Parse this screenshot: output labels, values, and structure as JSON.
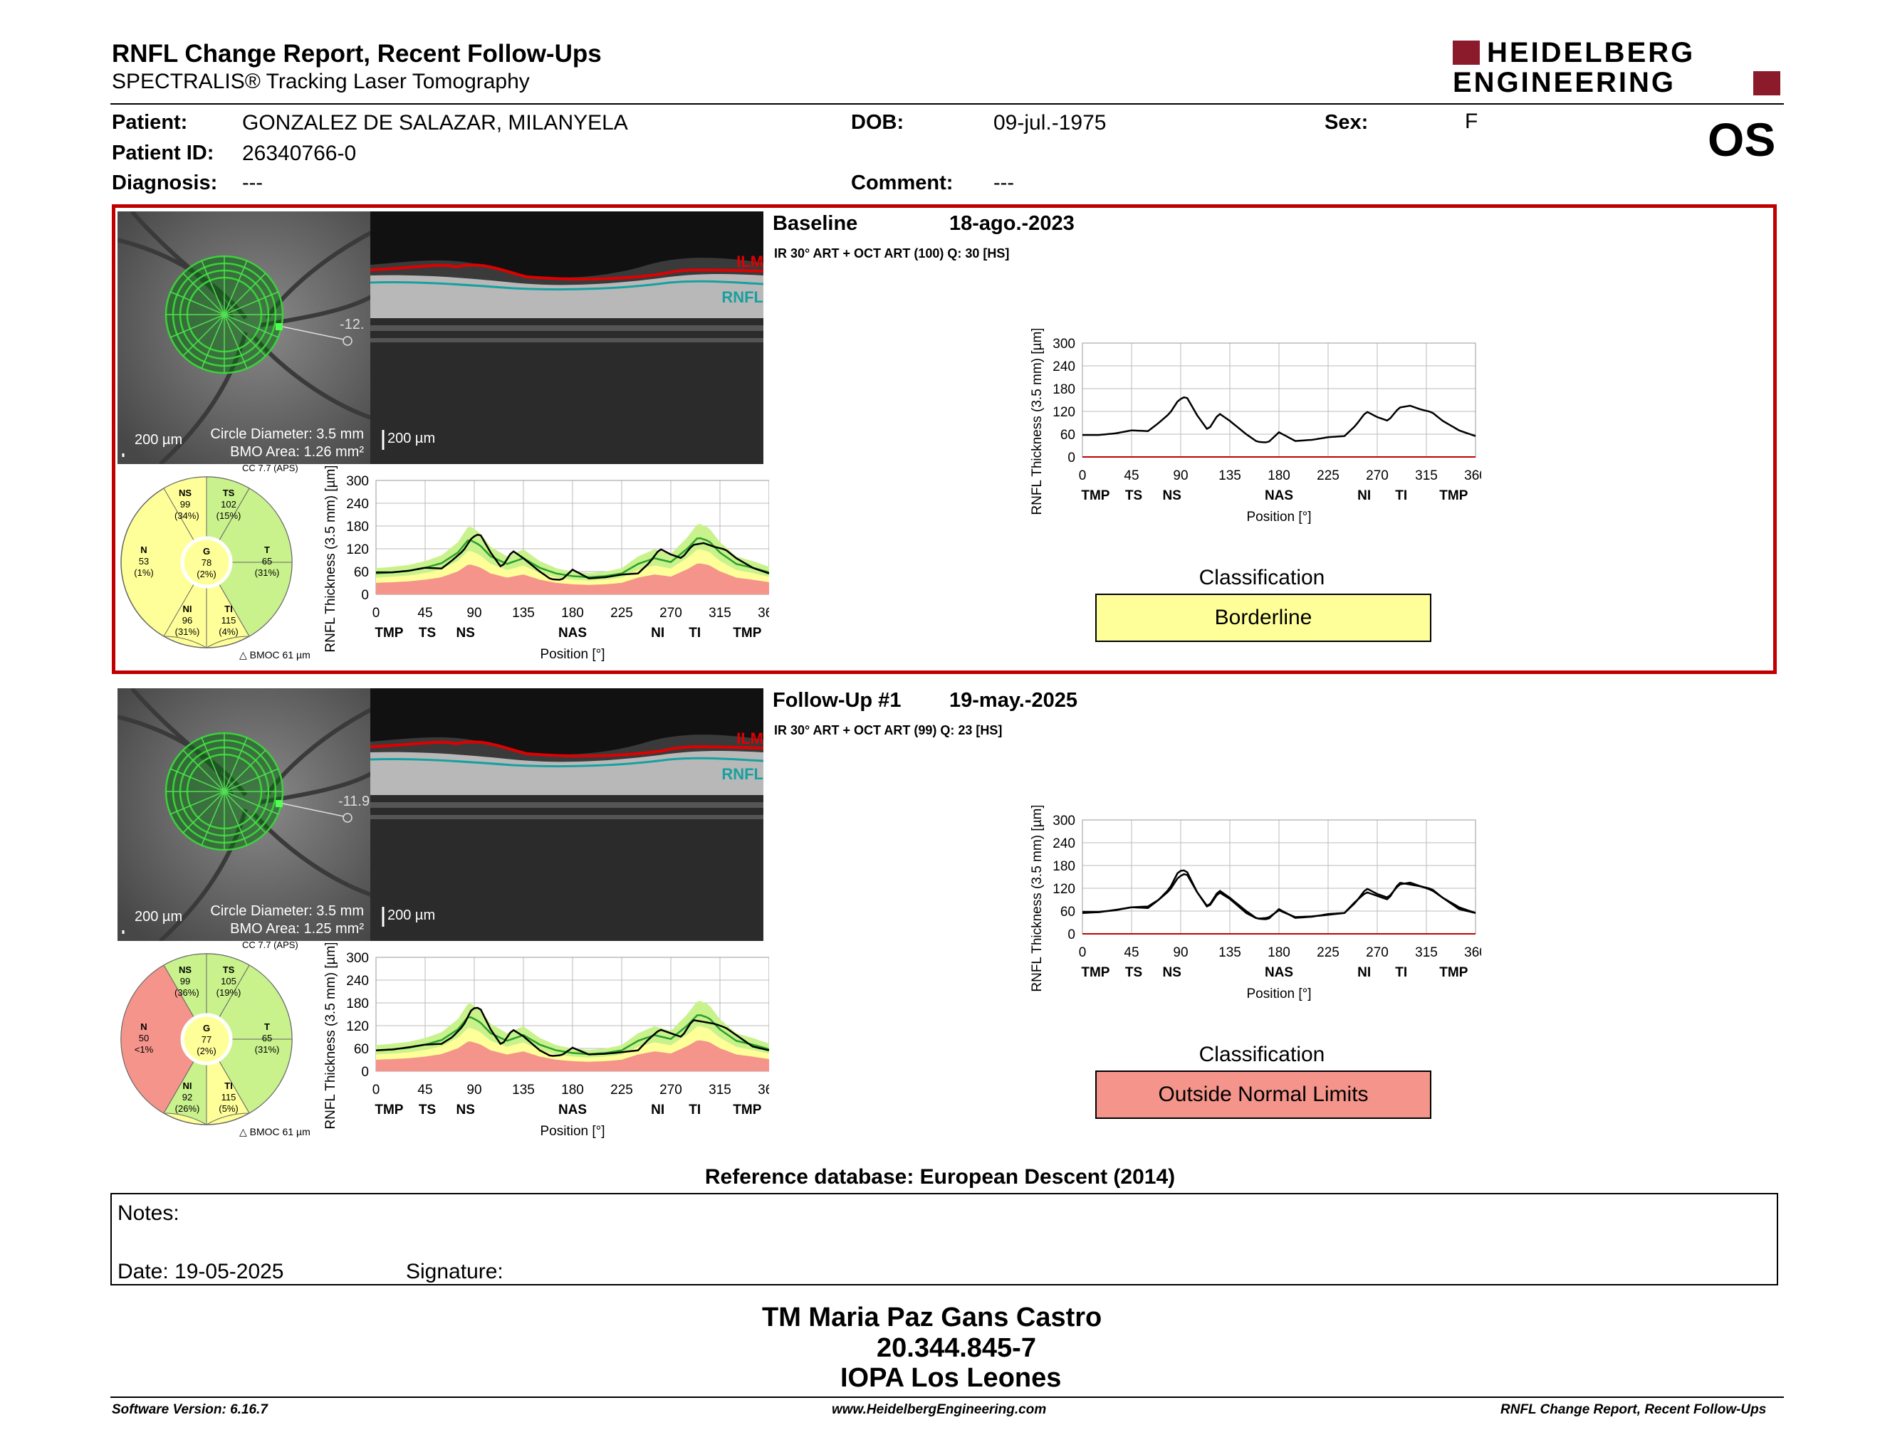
{
  "header": {
    "title": "RNFL Change Report, Recent Follow-Ups",
    "subtitle": "SPECTRALIS® Tracking Laser Tomography",
    "logo_line1": "HEIDELBERG",
    "logo_line2": "ENGINEERING",
    "eye": "OS"
  },
  "patient": {
    "patient_label": "Patient:",
    "patient_name": "GONZALEZ DE SALAZAR, MILANYELA",
    "dob_label": "DOB:",
    "dob": "09-jul.-1975",
    "sex_label": "Sex:",
    "sex": "F",
    "id_label": "Patient ID:",
    "id": "26340766-0",
    "diagnosis_label": "Diagnosis:",
    "diagnosis": "---",
    "comment_label": "Comment:",
    "comment": "---"
  },
  "colors": {
    "highlight_border": "#c00000",
    "borderline": "#ffff99",
    "outside_normal": "#f4948b",
    "within_normal": "#c9f28d",
    "ilm": "#e00000",
    "rnfl": "#18a0a0"
  },
  "exams": [
    {
      "label": "Baseline",
      "date": "18-ago.-2023",
      "acq": "IR 30° ART + OCT ART (100) Q: 30 [HS]",
      "scale_fundus": "200 µm",
      "circle_diameter": "Circle Diameter: 3.5 mm",
      "bmo_area": "BMO Area: 1.26 mm²",
      "scale_oct": "200 µm",
      "ilm": "ILM",
      "rnfl": "RNFL",
      "angle_readout": "-12.",
      "cc": "CC 7.7 (APS)",
      "bmoc": "BMOC 61 µm",
      "classification_title": "Classification",
      "classification": "Borderline",
      "sectors": {
        "NS": {
          "name": "NS",
          "value": "99",
          "pct": "(34%)"
        },
        "TS": {
          "name": "TS",
          "value": "102",
          "pct": "(15%)"
        },
        "N": {
          "name": "N",
          "value": "53",
          "pct": "(1%)"
        },
        "G": {
          "name": "G",
          "value": "78",
          "pct": "(2%)"
        },
        "T": {
          "name": "T",
          "value": "65",
          "pct": "(31%)"
        },
        "NI": {
          "name": "NI",
          "value": "96",
          "pct": "(31%)"
        },
        "TI": {
          "name": "TI",
          "value": "115",
          "pct": "(4%)"
        }
      }
    },
    {
      "label": "Follow-Up #1",
      "date": "19-may.-2025",
      "acq": "IR 30° ART + OCT ART (99) Q: 23 [HS]",
      "scale_fundus": "200 µm",
      "circle_diameter": "Circle Diameter: 3.5 mm",
      "bmo_area": "BMO Area: 1.25 mm²",
      "scale_oct": "200 µm",
      "ilm": "ILM",
      "rnfl": "RNFL",
      "angle_readout": "-11.9",
      "cc": "CC 7.7 (APS)",
      "bmoc": "BMOC 61 µm",
      "classification_title": "Classification",
      "classification": "Outside Normal Limits",
      "sectors": {
        "NS": {
          "name": "NS",
          "value": "99",
          "pct": "(36%)"
        },
        "TS": {
          "name": "TS",
          "value": "105",
          "pct": "(19%)"
        },
        "N": {
          "name": "N",
          "value": "50",
          "pct": "<1%"
        },
        "G": {
          "name": "G",
          "value": "77",
          "pct": "(2%)"
        },
        "T": {
          "name": "T",
          "value": "65",
          "pct": "(31%)"
        },
        "NI": {
          "name": "NI",
          "value": "92",
          "pct": "(26%)"
        },
        "TI": {
          "name": "TI",
          "value": "115",
          "pct": "(5%)"
        }
      }
    }
  ],
  "chart_common": {
    "ylabel": "RNFL Thickness (3.5 mm) [µm]",
    "xlabel": "Position [°]",
    "yticks": [
      "300",
      "240",
      "180",
      "120",
      "60",
      "0"
    ],
    "xticks": [
      "0",
      "45",
      "90",
      "135",
      "180",
      "225",
      "270",
      "315",
      "360"
    ],
    "regions": [
      "TMP",
      "TS",
      "NS",
      "NAS",
      "NI",
      "TI",
      "TMP"
    ]
  },
  "chart_data": [
    {
      "type": "line",
      "name": "baseline-normative",
      "x": [
        0,
        15,
        30,
        45,
        60,
        75,
        85,
        95,
        105,
        120,
        135,
        150,
        165,
        180,
        195,
        210,
        225,
        240,
        255,
        270,
        285,
        295,
        305,
        315,
        330,
        345,
        360
      ],
      "series": [
        {
          "values": [
            55,
            58,
            62,
            70,
            82,
            110,
            145,
            130,
            100,
            80,
            95,
            70,
            55,
            48,
            45,
            48,
            55,
            80,
            95,
            85,
            120,
            150,
            140,
            110,
            80,
            70,
            58
          ]
        }
      ],
      "ylim": [
        0,
        300
      ],
      "xlim": [
        0,
        360
      ]
    },
    {
      "type": "line",
      "name": "baseline-trend",
      "x": [
        0,
        15,
        30,
        45,
        60,
        70,
        80,
        88,
        95,
        105,
        115,
        125,
        135,
        150,
        160,
        170,
        180,
        195,
        210,
        225,
        240,
        250,
        260,
        270,
        280,
        290,
        300,
        310,
        320,
        330,
        345,
        360
      ],
      "series": [
        {
          "values": [
            58,
            58,
            62,
            70,
            68,
            90,
            115,
            150,
            160,
            110,
            70,
            115,
            95,
            60,
            40,
            38,
            65,
            42,
            45,
            52,
            55,
            82,
            120,
            105,
            95,
            130,
            135,
            125,
            118,
            95,
            70,
            55
          ]
        }
      ],
      "ylim": [
        0,
        300
      ],
      "xlim": [
        0,
        360
      ]
    },
    {
      "type": "line",
      "name": "followup-trend",
      "x": [
        0,
        15,
        30,
        45,
        60,
        70,
        80,
        88,
        95,
        105,
        115,
        125,
        135,
        150,
        160,
        170,
        180,
        195,
        210,
        225,
        240,
        250,
        260,
        270,
        280,
        290,
        300,
        310,
        320,
        330,
        345,
        360
      ],
      "series": [
        {
          "values": [
            55,
            57,
            63,
            70,
            72,
            90,
            120,
            165,
            168,
            110,
            68,
            110,
            92,
            55,
            40,
            42,
            62,
            44,
            46,
            50,
            55,
            85,
            110,
            100,
            90,
            135,
            130,
            125,
            115,
            95,
            65,
            55
          ]
        }
      ],
      "ylim": [
        0,
        300
      ],
      "xlim": [
        0,
        360
      ]
    }
  ],
  "reference_db": "Reference database: European Descent (2014)",
  "notes": {
    "notes_label": "Notes:",
    "date_label": "Date: 19-05-2025",
    "signature_label": "Signature:"
  },
  "signature": {
    "line1": "TM Maria Paz Gans Castro",
    "line2": "20.344.845-7",
    "line3": "IOPA Los Leones"
  },
  "footer": {
    "software": "Software Version: 6.16.7",
    "website": "www.HeidelbergEngineering.com",
    "report": "RNFL Change Report, Recent Follow-Ups"
  }
}
